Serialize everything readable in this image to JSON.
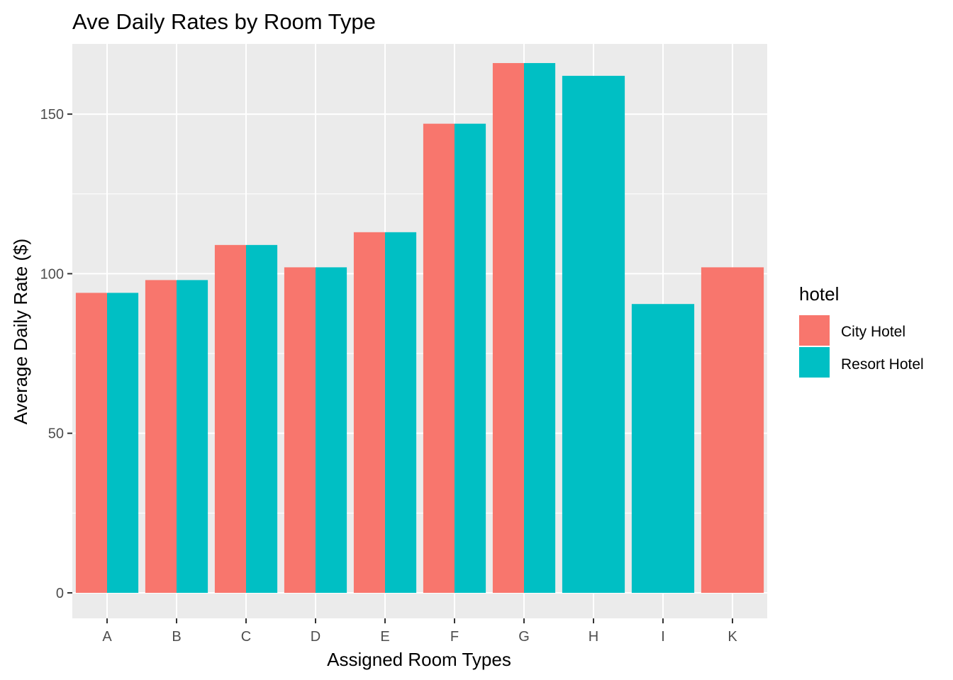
{
  "chart_data": {
    "type": "bar",
    "title": "Ave Daily Rates by Room Type",
    "xlabel": "Assigned Room Types",
    "ylabel": "Average Daily Rate ($)",
    "categories": [
      "A",
      "B",
      "C",
      "D",
      "E",
      "F",
      "G",
      "H",
      "I",
      "K"
    ],
    "ylim": [
      -8,
      172
    ],
    "yticks": [
      0,
      50,
      100,
      150
    ],
    "grid": true,
    "legend": {
      "title": "hotel",
      "position": "right"
    },
    "series": [
      {
        "name": "City Hotel",
        "color": "#F8766D",
        "values": [
          94,
          98,
          109,
          102,
          113,
          147,
          166,
          null,
          null,
          102
        ]
      },
      {
        "name": "Resort Hotel",
        "color": "#00BFC4",
        "values": [
          94,
          98,
          109,
          102,
          113,
          147,
          166,
          162,
          90.5,
          null
        ]
      }
    ]
  }
}
